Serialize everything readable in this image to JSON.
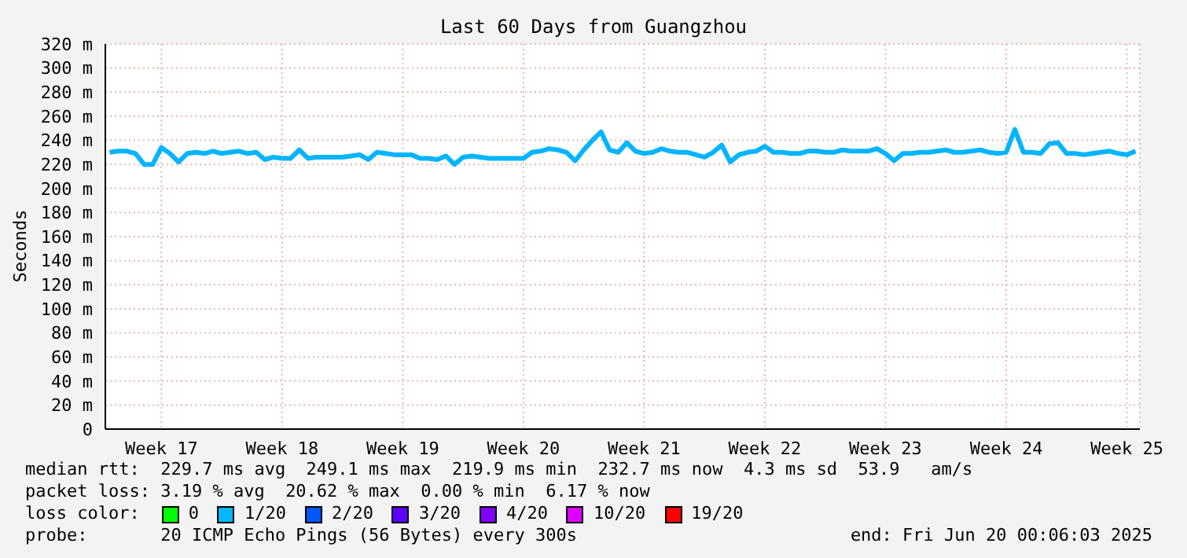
{
  "chart_data": {
    "type": "line",
    "title": "Last 60 Days from Guangzhou",
    "ylabel": "Seconds",
    "categories": [
      null,
      null,
      null,
      null,
      null,
      null,
      "Week 17",
      null,
      null,
      null,
      null,
      null,
      null,
      null,
      null,
      null,
      null,
      null,
      null,
      null,
      "Week 18",
      null,
      null,
      null,
      null,
      null,
      null,
      null,
      null,
      null,
      null,
      null,
      null,
      null,
      "Week 19",
      null,
      null,
      null,
      null,
      null,
      null,
      null,
      null,
      null,
      null,
      null,
      null,
      null,
      "Week 20",
      null,
      null,
      null,
      null,
      null,
      null,
      null,
      null,
      null,
      null,
      null,
      null,
      null,
      "Week 21",
      null,
      null,
      null,
      null,
      null,
      null,
      null,
      null,
      null,
      null,
      null,
      null,
      null,
      "Week 22",
      null,
      null,
      null,
      null,
      null,
      null,
      null,
      null,
      null,
      null,
      null,
      null,
      null,
      "Week 23",
      null,
      null,
      null,
      null,
      null,
      null,
      null,
      null,
      null,
      null,
      null,
      null,
      null,
      "Week 24",
      null,
      null,
      null,
      null,
      null,
      null,
      null,
      null,
      null,
      null,
      null,
      null,
      null,
      "Week 25",
      null
    ],
    "series": [
      {
        "color": "#00b4ff",
        "values": [
          230,
          231,
          231,
          229,
          220,
          220,
          234,
          229,
          222,
          229,
          230,
          229,
          231,
          229,
          230,
          231,
          229,
          230,
          224,
          226,
          225,
          225,
          232,
          225,
          226,
          226,
          226,
          226,
          227,
          228,
          224,
          230,
          229,
          228,
          228,
          228,
          225,
          225,
          224,
          227,
          220,
          226,
          227,
          226,
          225,
          225,
          225,
          225,
          225,
          230,
          231,
          233,
          232,
          230,
          223,
          232,
          240,
          247,
          232,
          230,
          238,
          231,
          229,
          230,
          233,
          231,
          230,
          230,
          228,
          226,
          230,
          236,
          222,
          228,
          230,
          231,
          235,
          230,
          230,
          229,
          229,
          231,
          231,
          230,
          230,
          232,
          231,
          231,
          231,
          233,
          229,
          223,
          229,
          229,
          230,
          230,
          231,
          232,
          230,
          230,
          231,
          232,
          230,
          229,
          230,
          249,
          230,
          230,
          229,
          237,
          238,
          229,
          229,
          228,
          229,
          230,
          231,
          229,
          228,
          231
        ]
      }
    ],
    "ylim": [
      0,
      320
    ],
    "yticks": [
      0,
      {
        "value": 20,
        "label": "20 m"
      },
      {
        "value": 40,
        "label": "40 m"
      },
      {
        "value": 60,
        "label": "60 m"
      },
      {
        "value": 80,
        "label": "80 m"
      },
      {
        "value": 100,
        "label": "100 m"
      },
      {
        "value": 120,
        "label": "120 m"
      },
      {
        "value": 140,
        "label": "140 m"
      },
      {
        "value": 160,
        "label": "160 m"
      },
      {
        "value": 180,
        "label": "180 m"
      },
      {
        "value": 200,
        "label": "200 m"
      },
      {
        "value": 220,
        "label": "220 m"
      },
      {
        "value": 240,
        "label": "240 m"
      },
      {
        "value": 260,
        "label": "260 m"
      },
      {
        "value": 280,
        "label": "280 m"
      },
      {
        "value": 300,
        "label": "300 m"
      },
      {
        "value": 320,
        "label": "320 m"
      }
    ],
    "grid": true,
    "marker": "none",
    "line_style": "solid",
    "annotations": [
      "median rtt:  229.7 ms avg  249.1 ms max  219.9 ms min  232.7 ms now  4.3 ms sd  53.9   am/s",
      "packet loss: 3.19 % avg  20.62 % max  0.00 % min  6.17 % now",
      "loss color:",
      "0",
      "1/20",
      "2/20",
      "3/20",
      "4/20",
      "10/20",
      "19/20",
      "probe:       20 ICMP Echo Pings (56 Bytes) every 300s",
      "end: Fri Jun 20 00:06:03 2025"
    ]
  }
}
